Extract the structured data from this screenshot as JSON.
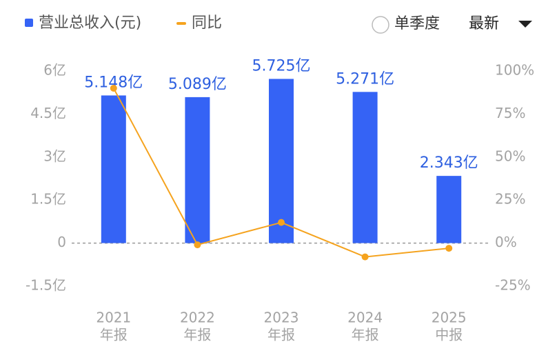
{
  "chart_data": {
    "type": "bar-line",
    "controls": {
      "single_quarter": "单季度",
      "period": "最新"
    },
    "categories": [
      [
        "2021",
        "年报"
      ],
      [
        "2022",
        "年报"
      ],
      [
        "2023",
        "年报"
      ],
      [
        "2024",
        "年报"
      ],
      [
        "2025",
        "中报"
      ]
    ],
    "series": [
      {
        "name": "营业总收入(元)",
        "type": "bar",
        "color": "#3563f5",
        "values": [
          5.148,
          5.089,
          5.725,
          5.271,
          2.343
        ],
        "value_labels": [
          "5.148亿",
          "5.089亿",
          "5.725亿",
          "5.271亿",
          "2.343亿"
        ]
      },
      {
        "name": "同比",
        "type": "line",
        "axis": "y2",
        "color": "#f5a31e",
        "values": [
          90,
          -1,
          12,
          -8,
          -3
        ]
      }
    ],
    "ylim": [
      -1.5,
      6
    ],
    "yticks": [
      {
        "value": 6,
        "label": "6亿"
      },
      {
        "value": 4.5,
        "label": "4.5亿"
      },
      {
        "value": 3,
        "label": "3亿"
      },
      {
        "value": 1.5,
        "label": "1.5亿"
      },
      0,
      {
        "value": -1.5,
        "label": "-1.5亿"
      }
    ],
    "y2lim": [
      -25,
      100
    ],
    "y2ticks": [
      {
        "value": 100,
        "label": "100%"
      },
      {
        "value": 75,
        "label": "75%"
      },
      {
        "value": 50,
        "label": "50%"
      },
      {
        "value": 25,
        "label": "25%"
      },
      {
        "value": 0,
        "label": "0%"
      },
      {
        "value": -25,
        "label": "-25%"
      }
    ],
    "zero_line": true
  }
}
